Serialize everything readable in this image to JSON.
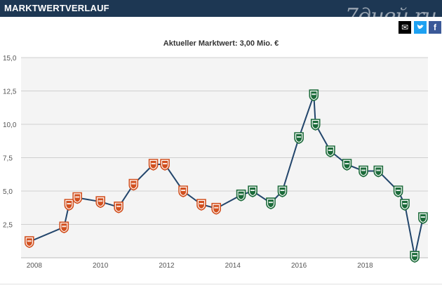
{
  "header": {
    "title": "MARKTWERTVERLAUF",
    "watermark": "7дней.ru"
  },
  "share": {
    "mail_icon": "mail-icon",
    "twitter_icon": "twitter-icon",
    "facebook_icon": "facebook-icon"
  },
  "chart_data": {
    "type": "line",
    "title": "Aktueller Marktwert: 3,00 Mio. €",
    "xlabel": "",
    "ylabel": "",
    "xlim": [
      2007.6,
      2019.9
    ],
    "ylim": [
      0,
      15
    ],
    "x_ticks": [
      "2008",
      "2010",
      "2012",
      "2014",
      "2016",
      "2018"
    ],
    "y_ticks": [
      "2,5",
      "5,0",
      "7,5",
      "10,0",
      "12,5",
      "15,0"
    ],
    "grid": true,
    "line_color": "#22456b",
    "club_colors": {
      "club_a": "#d2501f",
      "club_b": "#1c6b3a"
    },
    "series": [
      {
        "values": [
          {
            "x": 2007.85,
            "y": 1.2,
            "club": "club_a"
          },
          {
            "x": 2008.9,
            "y": 2.3,
            "club": "club_a"
          },
          {
            "x": 2009.05,
            "y": 4.0,
            "club": "club_a"
          },
          {
            "x": 2009.3,
            "y": 4.5,
            "club": "club_a"
          },
          {
            "x": 2010.0,
            "y": 4.2,
            "club": "club_a"
          },
          {
            "x": 2010.55,
            "y": 3.8,
            "club": "club_a"
          },
          {
            "x": 2011.0,
            "y": 5.5,
            "club": "club_a"
          },
          {
            "x": 2011.6,
            "y": 7.0,
            "club": "club_a"
          },
          {
            "x": 2011.95,
            "y": 7.0,
            "club": "club_a"
          },
          {
            "x": 2012.5,
            "y": 5.0,
            "club": "club_a"
          },
          {
            "x": 2013.05,
            "y": 4.0,
            "club": "club_a"
          },
          {
            "x": 2013.5,
            "y": 3.7,
            "club": "club_a"
          },
          {
            "x": 2014.25,
            "y": 4.7,
            "club": "club_b"
          },
          {
            "x": 2014.6,
            "y": 5.0,
            "club": "club_b"
          },
          {
            "x": 2015.15,
            "y": 4.1,
            "club": "club_b"
          },
          {
            "x": 2015.5,
            "y": 5.0,
            "club": "club_b"
          },
          {
            "x": 2016.0,
            "y": 9.0,
            "club": "club_b"
          },
          {
            "x": 2016.45,
            "y": 12.2,
            "club": "club_b"
          },
          {
            "x": 2016.5,
            "y": 10.0,
            "club": "club_b"
          },
          {
            "x": 2016.95,
            "y": 8.0,
            "club": "club_b"
          },
          {
            "x": 2017.45,
            "y": 7.0,
            "club": "club_b"
          },
          {
            "x": 2017.95,
            "y": 6.5,
            "club": "club_b"
          },
          {
            "x": 2018.4,
            "y": 6.5,
            "club": "club_b"
          },
          {
            "x": 2019.0,
            "y": 5.0,
            "club": "club_b"
          },
          {
            "x": 2019.2,
            "y": 4.0,
            "club": "club_b"
          },
          {
            "x": 2019.5,
            "y": 0.1,
            "club": "club_b"
          },
          {
            "x": 2019.75,
            "y": 3.0,
            "club": "club_b"
          }
        ]
      }
    ]
  }
}
